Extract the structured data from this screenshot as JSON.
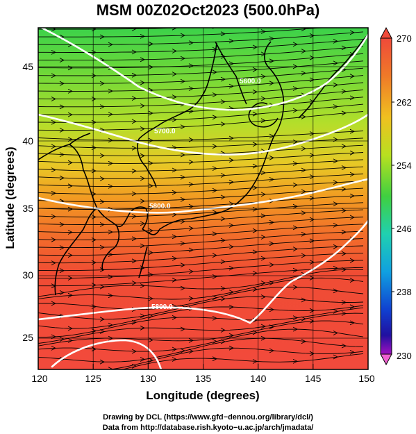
{
  "title": "MSM 00Z02Oct2023 (500.0hPa)",
  "map": {
    "xlabel": "Longitude (degrees)",
    "ylabel": "Latitude  (degrees)",
    "x_ticks": [
      "120",
      "125",
      "130",
      "135",
      "140",
      "145",
      "150"
    ],
    "y_ticks": [
      "25",
      "30",
      "35",
      "40",
      "45"
    ],
    "contour_labels": [
      "5800.0",
      "5800.0",
      "5700.0",
      "5600.0"
    ],
    "colorbar": {
      "ticks": [
        "270",
        "262",
        "254",
        "246",
        "238",
        "230"
      ],
      "colors": [
        "#f04a3a",
        "#f08a20",
        "#f0c820",
        "#b8e020",
        "#40d040",
        "#20d0b0",
        "#10a0e0",
        "#1040d0",
        "#2010a0",
        "#a010c0",
        "#f060d0"
      ]
    }
  },
  "credits": {
    "line1": "Drawing by DCL (https://www.gfd−dennou.org/library/dcl/)",
    "line2": "Data from http://database.rish.kyoto−u.ac.jp/arch/jmadata/"
  }
}
